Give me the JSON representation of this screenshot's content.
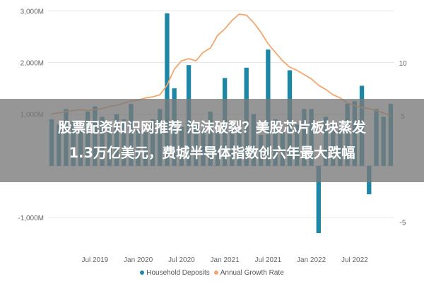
{
  "chart_data": {
    "type": "bar+line",
    "title": "",
    "xlabel": "",
    "ylabel": "",
    "left_axis": {
      "ylim": [
        -1600,
        3100
      ],
      "ticks": [
        -1000,
        0,
        1000,
        2000,
        3000
      ],
      "tick_labels": [
        "-1,000M",
        "",
        "1,000M",
        "2,000M",
        "3,000M"
      ]
    },
    "right_axis": {
      "ylim": [
        -7.5,
        15.4
      ],
      "ticks": [
        -5,
        0,
        5,
        10
      ],
      "tick_labels": [
        "-5",
        "",
        "5",
        "10"
      ]
    },
    "x_ticks": [
      {
        "label": "Jul 2019",
        "month_index": 6
      },
      {
        "label": "Jan 2020",
        "month_index": 12
      },
      {
        "label": "Jul 2020",
        "month_index": 18
      },
      {
        "label": "Jan 2021",
        "month_index": 24
      },
      {
        "label": "Jul 2021",
        "month_index": 30
      },
      {
        "label": "Jan 2022",
        "month_index": 36
      },
      {
        "label": "Jul 2022",
        "month_index": 42
      }
    ],
    "series": [
      {
        "name": "Household Deposits",
        "kind": "bar",
        "color": "#1d87a5",
        "values": [
          900,
          800,
          1100,
          850,
          700,
          1050,
          1150,
          950,
          800,
          1000,
          900,
          1200,
          700,
          650,
          900,
          1100,
          2950,
          1500,
          750,
          1950,
          850,
          700,
          1050,
          700,
          1700,
          800,
          700,
          1900,
          1000,
          600,
          2250,
          900,
          650,
          1850,
          800,
          1100,
          1100,
          -1300,
          950,
          800,
          700,
          1200,
          1250,
          1550,
          -550,
          1100,
          950,
          1200
        ]
      },
      {
        "name": "Annual Growth Rate",
        "kind": "line",
        "color": "#f4a66b",
        "values": [
          5.2,
          5.3,
          5.4,
          5.5,
          5.6,
          5.5,
          5.6,
          5.7,
          5.9,
          6.0,
          6.2,
          6.4,
          6.5,
          6.7,
          6.8,
          7.0,
          7.9,
          9.4,
          10.2,
          10.4,
          10.2,
          11.0,
          11.4,
          12.6,
          13.2,
          14.0,
          14.6,
          14.5,
          13.8,
          12.9,
          11.8,
          11.0,
          10.2,
          9.6,
          9.3,
          8.9,
          8.5,
          7.9,
          7.5,
          7.0,
          6.7,
          6.2,
          6.0,
          5.8,
          5.7,
          5.5,
          5.3,
          5.0
        ]
      }
    ],
    "legend": {
      "placement": "bottom",
      "entries": [
        {
          "label": "Household Deposits",
          "color": "#1d87a5"
        },
        {
          "label": "Annual Growth Rate",
          "color": "#f4a66b"
        }
      ]
    },
    "grid": false,
    "gridline_color": "#e6e6e6",
    "axis_text_color": "#666666"
  },
  "overlay": {
    "line1": "股票配资知识网推荐 泡沫破裂？美股芯片板块蒸发",
    "line2": "1.3万亿美元，费城半导体指数创六年最大跌幅"
  }
}
